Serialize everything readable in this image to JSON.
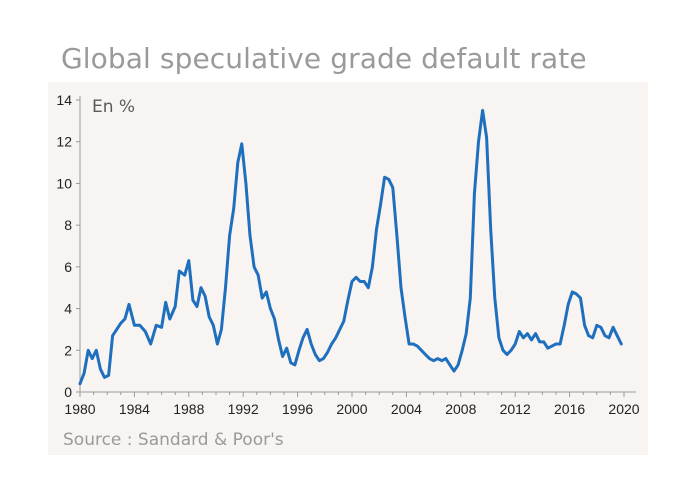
{
  "title": "Global speculative grade default rate",
  "source": "Source : Sandard & Poor's",
  "chart_data": {
    "type": "line",
    "title": "Global speculative grade default rate",
    "unit_label": "En %",
    "xlim": [
      1980,
      2020
    ],
    "ylim": [
      0,
      14
    ],
    "x_ticks": [
      "1980",
      "1984",
      "1988",
      "1992",
      "1996",
      "2000",
      "2004",
      "2008",
      "2012",
      "2016",
      "2020"
    ],
    "y_ticks": [
      "0",
      "2",
      "4",
      "6",
      "8",
      "10",
      "12",
      "14"
    ],
    "grid": false,
    "line_color": "#1f6fbf",
    "series": [
      {
        "x": [
          1980.0,
          1980.3,
          1980.6,
          1980.9,
          1981.2,
          1981.5,
          1981.8,
          1982.1,
          1982.4,
          1982.7,
          1983.0,
          1983.3,
          1983.6,
          1984.0,
          1984.4,
          1984.8,
          1985.2,
          1985.6,
          1986.0,
          1986.3,
          1986.6,
          1987.0,
          1987.3,
          1987.7,
          1988.0,
          1988.3,
          1988.6,
          1988.9,
          1989.2,
          1989.5,
          1989.8,
          1990.1,
          1990.4,
          1990.7,
          1991.0,
          1991.3,
          1991.6,
          1991.9,
          1992.2,
          1992.5,
          1992.8,
          1993.1,
          1993.4,
          1993.7,
          1994.0,
          1994.3,
          1994.6,
          1994.9,
          1995.2,
          1995.5,
          1995.8,
          1996.1,
          1996.4,
          1996.7,
          1997.0,
          1997.3,
          1997.6,
          1997.9,
          1998.2,
          1998.5,
          1998.8,
          1999.1,
          1999.4,
          1999.7,
          2000.0,
          2000.3,
          2000.6,
          2000.9,
          2001.2,
          2001.5,
          2001.8,
          2002.1,
          2002.4,
          2002.7,
          2003.0,
          2003.3,
          2003.6,
          2003.9,
          2004.2,
          2004.5,
          2004.8,
          2005.1,
          2005.4,
          2005.7,
          2006.0,
          2006.3,
          2006.6,
          2006.9,
          2007.2,
          2007.5,
          2007.8,
          2008.1,
          2008.4,
          2008.7,
          2009.0,
          2009.3,
          2009.6,
          2009.9,
          2010.2,
          2010.5,
          2010.8,
          2011.1,
          2011.4,
          2011.7,
          2012.0,
          2012.3,
          2012.6,
          2012.9,
          2013.2,
          2013.5,
          2013.8,
          2014.1,
          2014.4,
          2014.7,
          2015.0,
          2015.3,
          2015.6,
          2015.9,
          2016.2,
          2016.5,
          2016.8,
          2017.1,
          2017.4,
          2017.7,
          2018.0,
          2018.3,
          2018.6,
          2018.9,
          2019.2,
          2019.5,
          2019.8
        ],
        "values": [
          0.4,
          0.9,
          2.0,
          1.6,
          2.0,
          1.1,
          0.7,
          0.8,
          2.7,
          3.0,
          3.3,
          3.5,
          4.2,
          3.2,
          3.2,
          2.9,
          2.3,
          3.2,
          3.1,
          4.3,
          3.5,
          4.1,
          5.8,
          5.6,
          6.3,
          4.4,
          4.1,
          5.0,
          4.6,
          3.6,
          3.2,
          2.3,
          3.0,
          5.0,
          7.5,
          8.8,
          11.0,
          11.9,
          10.0,
          7.5,
          6.0,
          5.6,
          4.5,
          4.8,
          4.0,
          3.5,
          2.5,
          1.7,
          2.1,
          1.4,
          1.3,
          2.0,
          2.6,
          3.0,
          2.3,
          1.8,
          1.5,
          1.6,
          1.9,
          2.3,
          2.6,
          3.0,
          3.4,
          4.4,
          5.3,
          5.5,
          5.3,
          5.3,
          5.0,
          6.0,
          7.8,
          9.0,
          10.3,
          10.2,
          9.8,
          7.5,
          5.0,
          3.6,
          2.3,
          2.3,
          2.2,
          2.0,
          1.8,
          1.6,
          1.5,
          1.6,
          1.5,
          1.6,
          1.3,
          1.0,
          1.3,
          2.0,
          2.8,
          4.5,
          9.5,
          12.0,
          13.5,
          12.2,
          7.8,
          4.5,
          2.6,
          2.0,
          1.8,
          2.0,
          2.3,
          2.9,
          2.6,
          2.8,
          2.5,
          2.8,
          2.4,
          2.4,
          2.1,
          2.2,
          2.3,
          2.3,
          3.2,
          4.2,
          4.8,
          4.7,
          4.5,
          3.2,
          2.7,
          2.6,
          3.2,
          3.1,
          2.7,
          2.6,
          3.1,
          2.7,
          2.3
        ]
      }
    ]
  }
}
